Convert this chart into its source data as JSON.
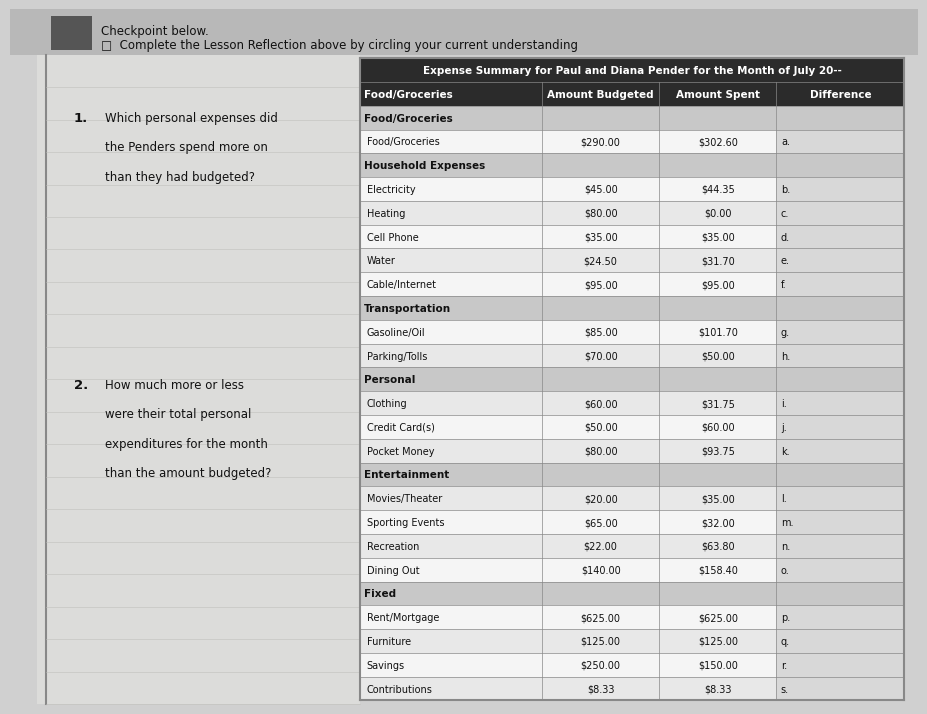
{
  "title": "Expense Summary for Paul and Diana Pender for the Month of July 20--",
  "col_headers": [
    "Food/Groceries",
    "Amount Budgeted",
    "Amount Spent",
    "Difference"
  ],
  "sections": [
    {
      "name": "Food/Groceries",
      "rows": [
        [
          "Food/Groceries",
          "$290.00",
          "$302.60",
          "a."
        ]
      ]
    },
    {
      "name": "Household Expenses",
      "rows": [
        [
          "Electricity",
          "$45.00",
          "$44.35",
          "b."
        ],
        [
          "Heating",
          "$80.00",
          "$0.00",
          "c."
        ],
        [
          "Cell Phone",
          "$35.00",
          "$35.00",
          "d."
        ],
        [
          "Water",
          "$24.50",
          "$31.70",
          "e."
        ],
        [
          "Cable/Internet",
          "$95.00",
          "$95.00",
          "f."
        ]
      ]
    },
    {
      "name": "Transportation",
      "rows": [
        [
          "Gasoline/Oil",
          "$85.00",
          "$101.70",
          "g."
        ],
        [
          "Parking/Tolls",
          "$70.00",
          "$50.00",
          "h."
        ]
      ]
    },
    {
      "name": "Personal",
      "rows": [
        [
          "Clothing",
          "$60.00",
          "$31.75",
          "i."
        ],
        [
          "Credit Card(s)",
          "$50.00",
          "$60.00",
          "j."
        ],
        [
          "Pocket Money",
          "$80.00",
          "$93.75",
          "k."
        ]
      ]
    },
    {
      "name": "Entertainment",
      "rows": [
        [
          "Movies/Theater",
          "$20.00",
          "$35.00",
          "l."
        ],
        [
          "Sporting Events",
          "$65.00",
          "$32.00",
          "m."
        ],
        [
          "Recreation",
          "$22.00",
          "$63.80",
          "n."
        ],
        [
          "Dining Out",
          "$140.00",
          "$158.40",
          "o."
        ]
      ]
    },
    {
      "name": "Fixed",
      "rows": [
        [
          "Rent/Mortgage",
          "$625.00",
          "$625.00",
          "p."
        ],
        [
          "Furniture",
          "$125.00",
          "$125.00",
          "q."
        ],
        [
          "Savings",
          "$250.00",
          "$150.00",
          "r."
        ],
        [
          "Contributions",
          "$8.33",
          "$8.33",
          "s."
        ]
      ]
    }
  ],
  "left_questions": [
    {
      "number": "1.",
      "lines": [
        "Which personal expenses did",
        "the Penders spend more on",
        "than they had budgeted?"
      ]
    },
    {
      "number": "2.",
      "lines": [
        "How much more or less",
        "were their total personal",
        "expenditures for the month",
        "than the amount budgeted?"
      ]
    }
  ],
  "header_bg": "#2b2b2b",
  "header_fg": "#ffffff",
  "section_bg": "#c8c8c8",
  "data_row_bg": "#e8e8e8",
  "data_row_alt": "#f5f5f5",
  "diff_col_bg": "#d8d8d8",
  "border_color": "#888888",
  "page_bg": "#d0d0d0",
  "left_bg": "#e8e8e4",
  "top_text_1": "Checkpoint below.",
  "top_text_2": "□  Complete the Lesson Reflection above by circling your current understanding"
}
